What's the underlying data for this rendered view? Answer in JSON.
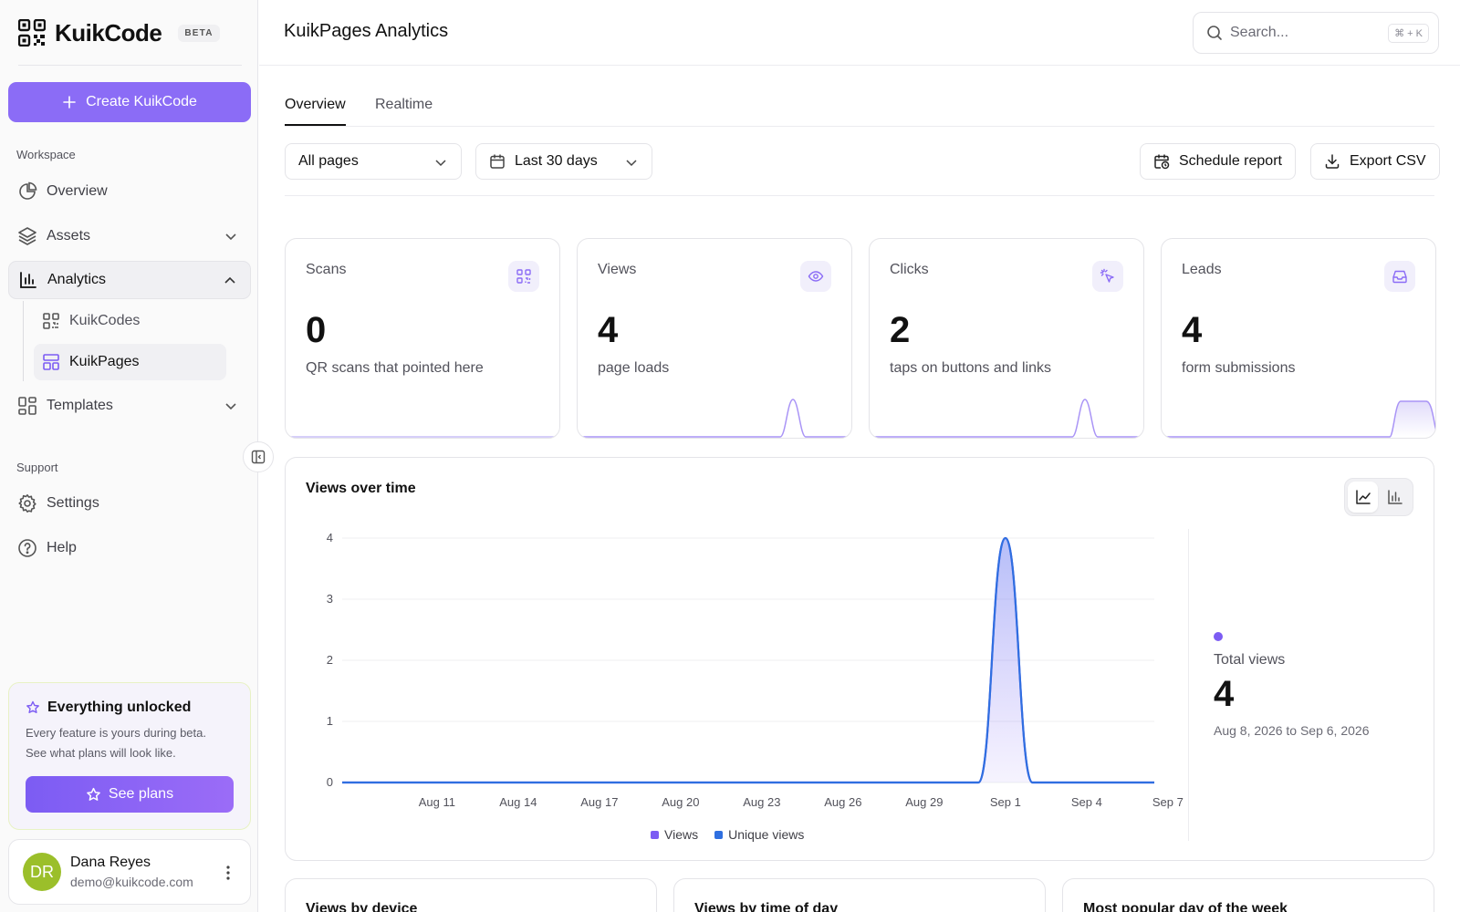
{
  "brand": {
    "name": "KuikCode",
    "badge": "BETA"
  },
  "sidebar": {
    "create_label": "Create KuikCode",
    "workspace_label": "Workspace",
    "nav": {
      "overview": "Overview",
      "assets": "Assets",
      "analytics": "Analytics",
      "kuikcodes": "KuikCodes",
      "kuikpages": "KuikPages",
      "templates": "Templates"
    },
    "support_label": "Support",
    "support": {
      "settings": "Settings",
      "help": "Help"
    },
    "promo": {
      "title": "Everything unlocked",
      "text1": "Every feature is yours during beta.",
      "text2": "See what plans will look like.",
      "button": "See plans"
    },
    "user": {
      "initials": "DR",
      "name": "Dana Reyes",
      "email": "demo@kuikcode.com"
    }
  },
  "header": {
    "title": "KuikPages Analytics",
    "search_placeholder": "Search...",
    "search_shortcut": "⌘ + K"
  },
  "tabs": {
    "overview": "Overview",
    "realtime": "Realtime"
  },
  "filters": {
    "pages": "All pages",
    "range": "Last 30 days",
    "schedule": "Schedule report",
    "export": "Export CSV"
  },
  "stats": {
    "scans": {
      "label": "Scans",
      "value": "0",
      "sub": "QR scans that pointed here"
    },
    "views": {
      "label": "Views",
      "value": "4",
      "sub": "page loads"
    },
    "clicks": {
      "label": "Clicks",
      "value": "2",
      "sub": "taps on buttons and links"
    },
    "leads": {
      "label": "Leads",
      "value": "4",
      "sub": "form submissions"
    }
  },
  "views_chart": {
    "title": "Views over time",
    "total_label": "Total views",
    "total_value": "4",
    "range_text": "Aug 8, 2026 to Sep 6, 2026"
  },
  "colors": {
    "accent": "#8b6cf6",
    "views": "#7c5cf3",
    "unique": "#2f6fe0"
  },
  "chart_data": {
    "type": "area",
    "x": [
      "Aug 8",
      "Aug 9",
      "Aug 10",
      "Aug 11",
      "Aug 12",
      "Aug 13",
      "Aug 14",
      "Aug 15",
      "Aug 16",
      "Aug 17",
      "Aug 18",
      "Aug 19",
      "Aug 20",
      "Aug 21",
      "Aug 22",
      "Aug 23",
      "Aug 24",
      "Aug 25",
      "Aug 26",
      "Aug 27",
      "Aug 28",
      "Aug 29",
      "Aug 30",
      "Aug 31",
      "Sep 1",
      "Sep 2",
      "Sep 3",
      "Sep 4",
      "Sep 5",
      "Sep 6"
    ],
    "x_ticks": [
      "Aug 11",
      "Aug 14",
      "Aug 17",
      "Aug 20",
      "Aug 23",
      "Aug 26",
      "Aug 29",
      "Sep 1",
      "Sep 4",
      "Sep 7"
    ],
    "series": [
      {
        "name": "Views",
        "values": [
          0,
          0,
          0,
          0,
          0,
          0,
          0,
          0,
          0,
          0,
          0,
          0,
          0,
          0,
          0,
          0,
          0,
          0,
          0,
          0,
          0,
          0,
          0,
          0,
          4,
          0,
          0,
          0,
          0,
          0
        ]
      },
      {
        "name": "Unique views",
        "values": [
          0,
          0,
          0,
          0,
          0,
          0,
          0,
          0,
          0,
          0,
          0,
          0,
          0,
          0,
          0,
          0,
          0,
          0,
          0,
          0,
          0,
          0,
          0,
          0,
          4,
          0,
          0,
          0,
          0,
          0
        ]
      }
    ],
    "ylim": [
      0,
      4
    ],
    "y_ticks": [
      "0",
      "1",
      "2",
      "3",
      "4"
    ],
    "grid": true,
    "legend": "bottom"
  },
  "bottom": {
    "device": "Views by device",
    "time_of_day": "Views by time of day",
    "popular_day": "Most popular day of the week"
  }
}
